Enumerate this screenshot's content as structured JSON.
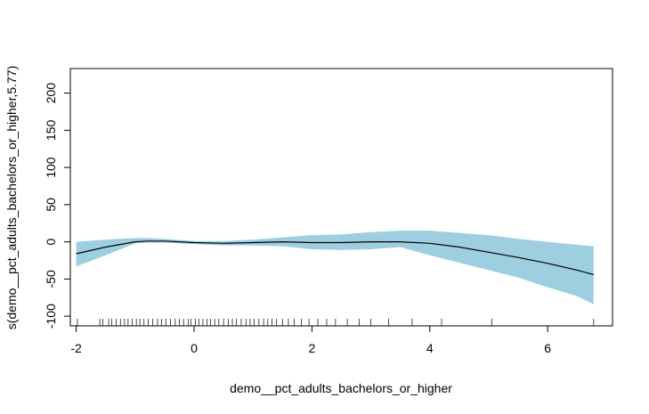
{
  "chart_data": {
    "type": "area",
    "title": "",
    "xlabel": "demo__pct_adults_bachelors_or_higher",
    "ylabel": "s(demo__pct_adults_bachelors_or_higher,5.77)",
    "xlim": [
      -2.1,
      7.1
    ],
    "ylim": [
      -113,
      233
    ],
    "x_ticks": [
      -2,
      0,
      2,
      4,
      6
    ],
    "y_ticks": [
      -100,
      -50,
      0,
      50,
      100,
      150,
      200
    ],
    "grid": false,
    "colors": {
      "band": "#9ecfe0",
      "line": "#000000",
      "axis": "#000000"
    },
    "series": [
      {
        "x": [
          -2.0,
          -1.5,
          -1.0,
          -0.8,
          -0.5,
          0.0,
          0.5,
          1.0,
          1.5,
          2.0,
          2.5,
          3.0,
          3.5,
          4.0,
          4.5,
          5.0,
          5.5,
          6.0,
          6.5,
          6.78
        ],
        "fit": [
          -16,
          -7,
          0,
          1,
          1,
          -1,
          -2,
          -1,
          0,
          -1,
          -1,
          0,
          0,
          -2,
          -7,
          -14,
          -21,
          -29,
          -38,
          -44
        ],
        "upper": [
          0,
          3,
          5,
          5,
          4,
          1,
          1,
          3,
          6,
          9,
          10,
          13,
          15,
          15,
          12,
          9,
          4,
          0,
          -4,
          -6
        ],
        "lower": [
          -33,
          -18,
          -2,
          -1,
          -1,
          -3,
          -5,
          -5,
          -6,
          -10,
          -11,
          -10,
          -7,
          -18,
          -28,
          -38,
          -48,
          -61,
          -73,
          -84
        ]
      }
    ],
    "rug": [
      -1.98,
      -1.6,
      -1.55,
      -1.45,
      -1.4,
      -1.32,
      -1.25,
      -1.18,
      -1.12,
      -1.05,
      -0.98,
      -0.92,
      -0.85,
      -0.78,
      -0.7,
      -0.62,
      -0.55,
      -0.48,
      -0.4,
      -0.32,
      -0.25,
      -0.18,
      -0.1,
      -0.05,
      0.02,
      0.08,
      0.15,
      0.22,
      0.28,
      0.35,
      0.42,
      0.5,
      0.58,
      0.65,
      0.72,
      0.8,
      0.88,
      0.95,
      1.02,
      1.1,
      1.18,
      1.25,
      1.32,
      1.4,
      1.5,
      1.6,
      1.7,
      1.82,
      1.95,
      2.1,
      2.25,
      2.4,
      2.6,
      2.8,
      3.0,
      3.3,
      3.7,
      4.2,
      5.05,
      6.78
    ]
  }
}
